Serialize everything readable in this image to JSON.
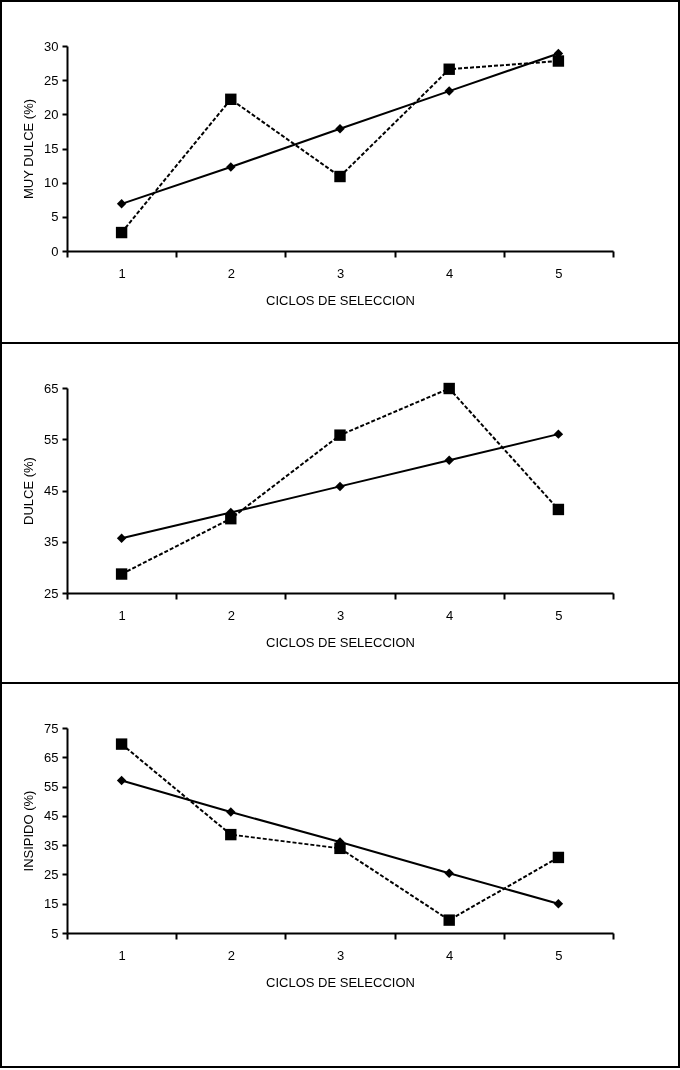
{
  "chart_data": [
    {
      "type": "line",
      "ylabel": "MUY DULCE (%)",
      "xlabel": "CICLOS DE SELECCION",
      "categories": [
        "1",
        "2",
        "3",
        "4",
        "5"
      ],
      "ylim": [
        0,
        30
      ],
      "yticks": [
        0,
        5,
        10,
        15,
        20,
        25,
        30
      ],
      "grid": false,
      "series": [
        {
          "color": "#000000",
          "line_style": "solid",
          "marker": "diamond",
          "values": [
            6.9,
            12.3,
            17.9,
            23.4,
            28.9
          ]
        },
        {
          "color": "#000000",
          "line_style": "dashed",
          "marker": "square",
          "values": [
            2.7,
            22.2,
            10.9,
            26.6,
            27.8
          ]
        }
      ]
    },
    {
      "type": "line",
      "ylabel": "DULCE (%)",
      "xlabel": "CICLOS DE SELECCION",
      "categories": [
        "1",
        "2",
        "3",
        "4",
        "5"
      ],
      "ylim": [
        25,
        65
      ],
      "yticks": [
        25,
        35,
        45,
        55,
        65
      ],
      "grid": false,
      "series": [
        {
          "color": "#000000",
          "line_style": "solid",
          "marker": "diamond",
          "values": [
            35.7,
            40.7,
            45.8,
            50.9,
            56
          ]
        },
        {
          "color": "#000000",
          "line_style": "dashed",
          "marker": "square",
          "values": [
            28.7,
            39.5,
            55.8,
            64.9,
            41.3
          ]
        }
      ]
    },
    {
      "type": "line",
      "ylabel": "INSIPIDO (%)",
      "xlabel": "CICLOS DE SELECCION",
      "categories": [
        "1",
        "2",
        "3",
        "4",
        "5"
      ],
      "ylim": [
        5,
        75
      ],
      "yticks": [
        5,
        15,
        25,
        35,
        45,
        55,
        65,
        75
      ],
      "grid": false,
      "series": [
        {
          "color": "#000000",
          "line_style": "solid",
          "marker": "diamond",
          "values": [
            57.1,
            46.3,
            36.1,
            25.4,
            15
          ]
        },
        {
          "color": "#000000",
          "line_style": "dashed",
          "marker": "square",
          "values": [
            69.5,
            38.6,
            33.9,
            9.4,
            30.8
          ]
        }
      ]
    }
  ]
}
